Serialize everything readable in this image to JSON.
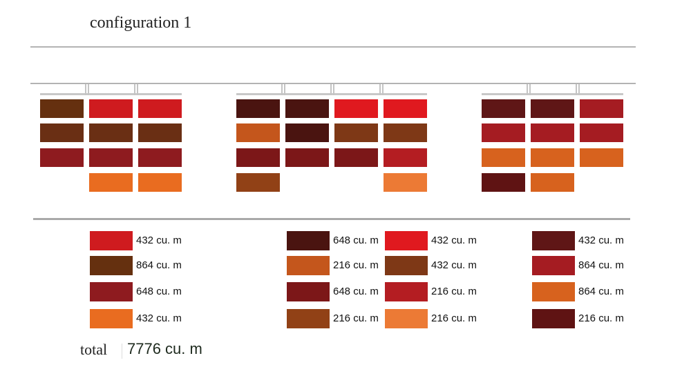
{
  "title": "configuration 1",
  "racks": [
    {
      "rows": [
        [
          "#65300f",
          "#cf1b1f",
          "#cf1b1f"
        ],
        [
          "#6a2f14",
          "#6a2f14",
          "#6a2f14"
        ],
        [
          "#8e1b1f",
          "#8e1b1f",
          "#8e1b1f"
        ],
        [
          null,
          "#e96c20",
          "#e96c20"
        ]
      ]
    },
    {
      "rows": [
        [
          "#4a1410",
          "#4a1410",
          "#e0191f",
          "#e0191f"
        ],
        [
          "#c4561c",
          "#4a1410",
          "#7e3816",
          "#7e3816"
        ],
        [
          "#7c1718",
          "#7c1718",
          "#7c1718",
          "#b41d22"
        ],
        [
          "#914116",
          null,
          null,
          "#ec7a35"
        ]
      ]
    },
    {
      "rows": [
        [
          "#5f1616",
          "#5f1616",
          "#a51c22"
        ],
        [
          "#a51c22",
          "#a51c22",
          "#a51c22"
        ],
        [
          "#d7621e",
          "#d7621e",
          "#d7621e"
        ],
        [
          "#5f1313",
          "#d7621e",
          null
        ]
      ]
    }
  ],
  "legend": [
    [
      {
        "color": "#cf1b1f",
        "label": "432 cu. m"
      },
      {
        "color": "#65300f",
        "label": "864 cu. m"
      },
      {
        "color": "#8e1b1f",
        "label": "648 cu. m"
      },
      {
        "color": "#e96c20",
        "label": "432 cu. m"
      }
    ],
    [
      {
        "color": "#4a1410",
        "label": "648 cu. m"
      },
      {
        "color": "#c4561c",
        "label": "216 cu. m"
      },
      {
        "color": "#7c1718",
        "label": "648 cu. m"
      },
      {
        "color": "#914116",
        "label": "216 cu. m"
      }
    ],
    [
      {
        "color": "#e0191f",
        "label": "432 cu. m"
      },
      {
        "color": "#7e3816",
        "label": "432 cu. m"
      },
      {
        "color": "#b41d22",
        "label": "216 cu. m"
      },
      {
        "color": "#ec7a35",
        "label": "216 cu. m"
      }
    ],
    [
      {
        "color": "#5f1616",
        "label": "432 cu. m"
      },
      {
        "color": "#a51c22",
        "label": "864 cu. m"
      },
      {
        "color": "#d7621e",
        "label": "864 cu. m"
      },
      {
        "color": "#5f1313",
        "label": "216 cu. m"
      }
    ]
  ],
  "total": {
    "label": "total",
    "value": "7776 cu. m"
  }
}
